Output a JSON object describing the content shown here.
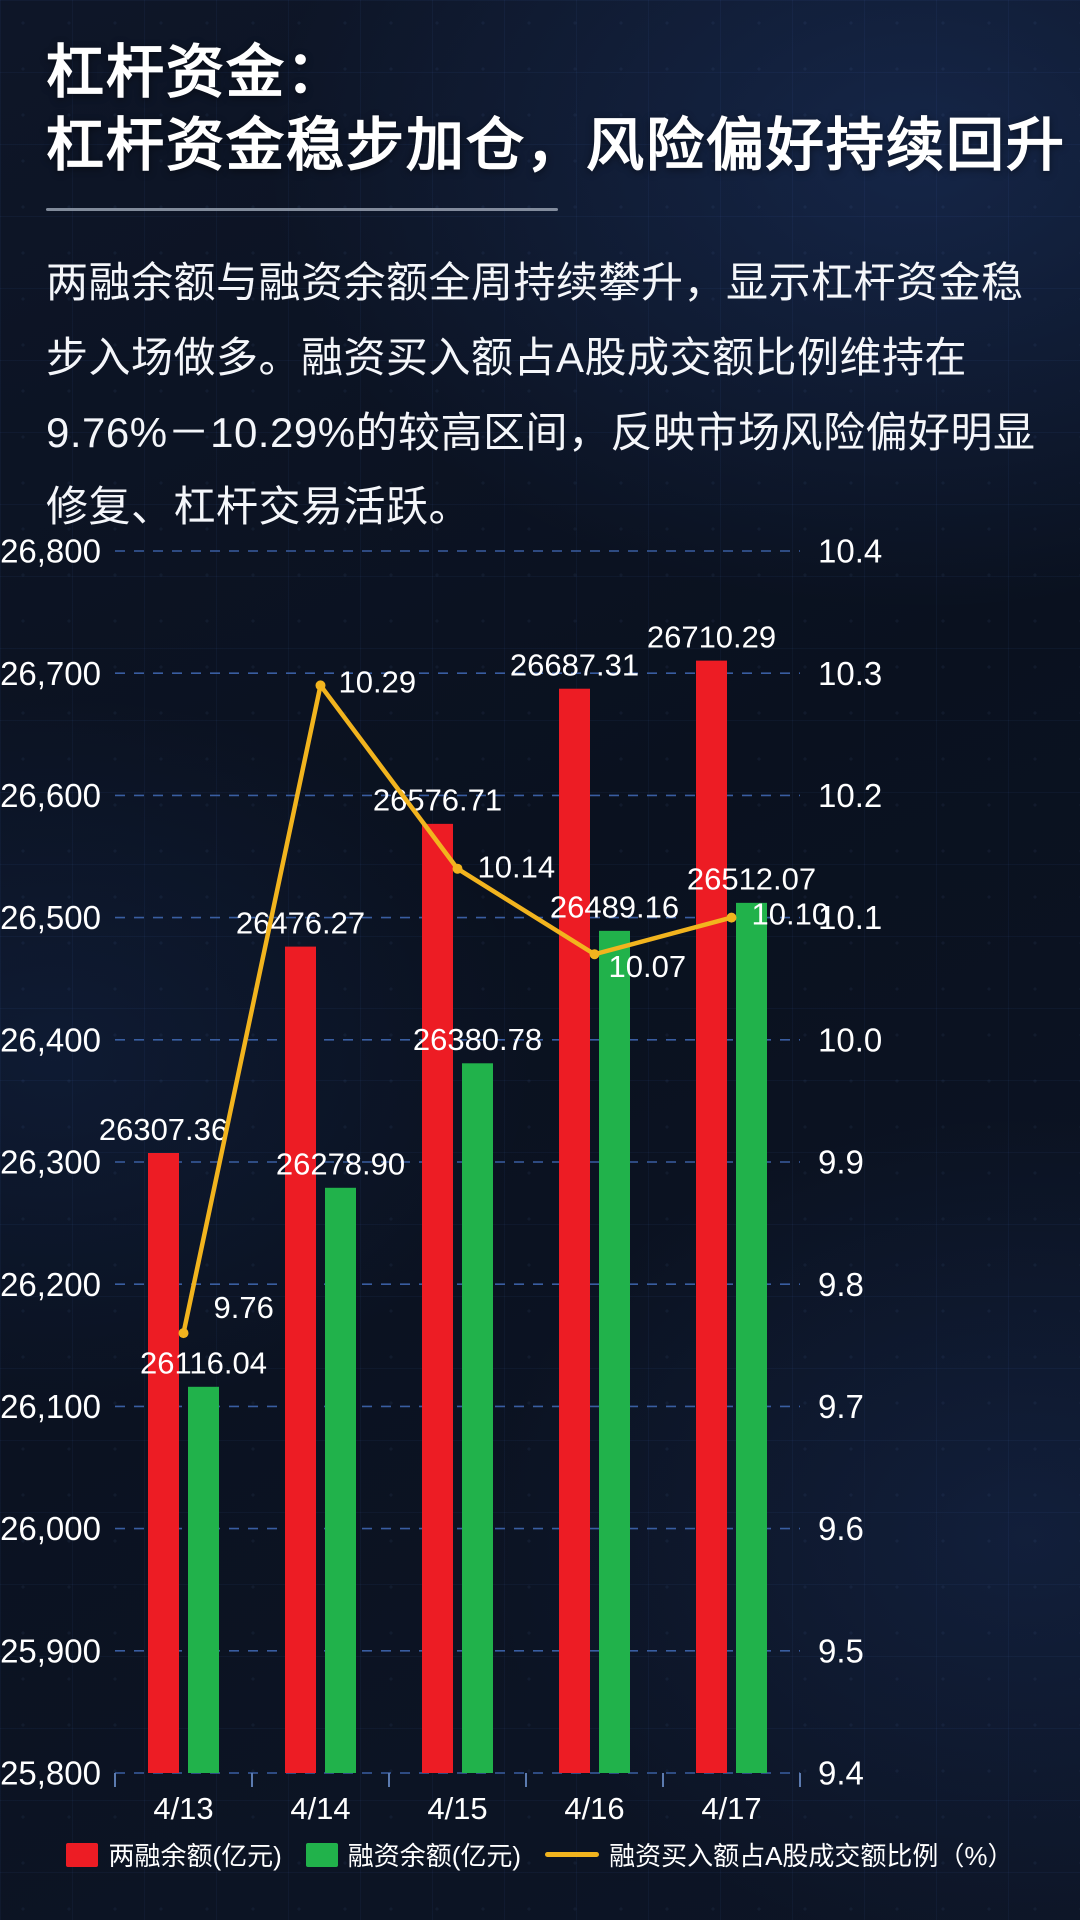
{
  "page": {
    "title_line1": "杠杆资金：",
    "title_line2": "杠杆资金稳步加仓，风险偏好持续回升",
    "paragraph": "两融余额与融资余额全周持续攀升，显示杠杆资金稳步入场做多。融资买入额占A股成交额比例维持在9.76%－10.29%的较高区间，反映市场风险偏好明显修复、杠杆交易活跃。"
  },
  "colors": {
    "background": "#0d1526",
    "bar_red": "#ed1c24",
    "bar_green": "#21b24b",
    "line_yellow": "#f2b41e",
    "gridline": "#3c62a8",
    "axis_tick": "#5c7bb0",
    "text": "#ffffff"
  },
  "chart_data": {
    "type": "bar+line",
    "title": "",
    "categories": [
      "4/13",
      "4/14",
      "4/15",
      "4/16",
      "4/17"
    ],
    "series": [
      {
        "name": "两融余额(亿元)",
        "type": "bar",
        "axis": "left",
        "color_key": "bar_red",
        "values": [
          26307.36,
          26476.27,
          26576.71,
          26687.31,
          26710.29
        ],
        "labels": [
          "26307.36",
          "26476.27",
          "26576.71",
          "26687.31",
          "26710.29"
        ]
      },
      {
        "name": "融资余额(亿元)",
        "type": "bar",
        "axis": "left",
        "color_key": "bar_green",
        "values": [
          26116.04,
          26278.9,
          26380.78,
          26489.16,
          26512.07
        ],
        "labels": [
          "26116.04",
          "26278.90",
          "26380.78",
          "26489.16",
          "26512.07"
        ]
      },
      {
        "name": "融资买入额占A股成交额比例（%）",
        "type": "line",
        "axis": "right",
        "color_key": "line_yellow",
        "values": [
          9.76,
          10.29,
          10.14,
          10.07,
          10.1
        ],
        "labels": [
          "9.76",
          "10.29",
          "10.14",
          "10.07",
          "10.10"
        ]
      }
    ],
    "left_axis": {
      "min": 25800,
      "max": 26800,
      "step": 100,
      "tick_labels": [
        "25,800",
        "25,900",
        "26,000",
        "26,100",
        "26,200",
        "26,300",
        "26,400",
        "26,500",
        "26,600",
        "26,700",
        "26,800"
      ]
    },
    "right_axis": {
      "min": 9.4,
      "max": 10.4,
      "step": 0.1,
      "tick_labels": [
        "9.4",
        "9.5",
        "9.6",
        "9.7",
        "9.8",
        "9.9",
        "10.0",
        "10.1",
        "10.2",
        "10.3",
        "10.4"
      ]
    },
    "grid": "dashed",
    "legend_position": "bottom"
  },
  "legend": {
    "items": [
      {
        "label": "两融余额(亿元)",
        "swatch": "square",
        "color_key": "bar_red"
      },
      {
        "label": "融资余额(亿元)",
        "swatch": "square",
        "color_key": "bar_green"
      },
      {
        "label": "融资买入额占A股成交额比例（%）",
        "swatch": "line",
        "color_key": "line_yellow"
      }
    ]
  }
}
